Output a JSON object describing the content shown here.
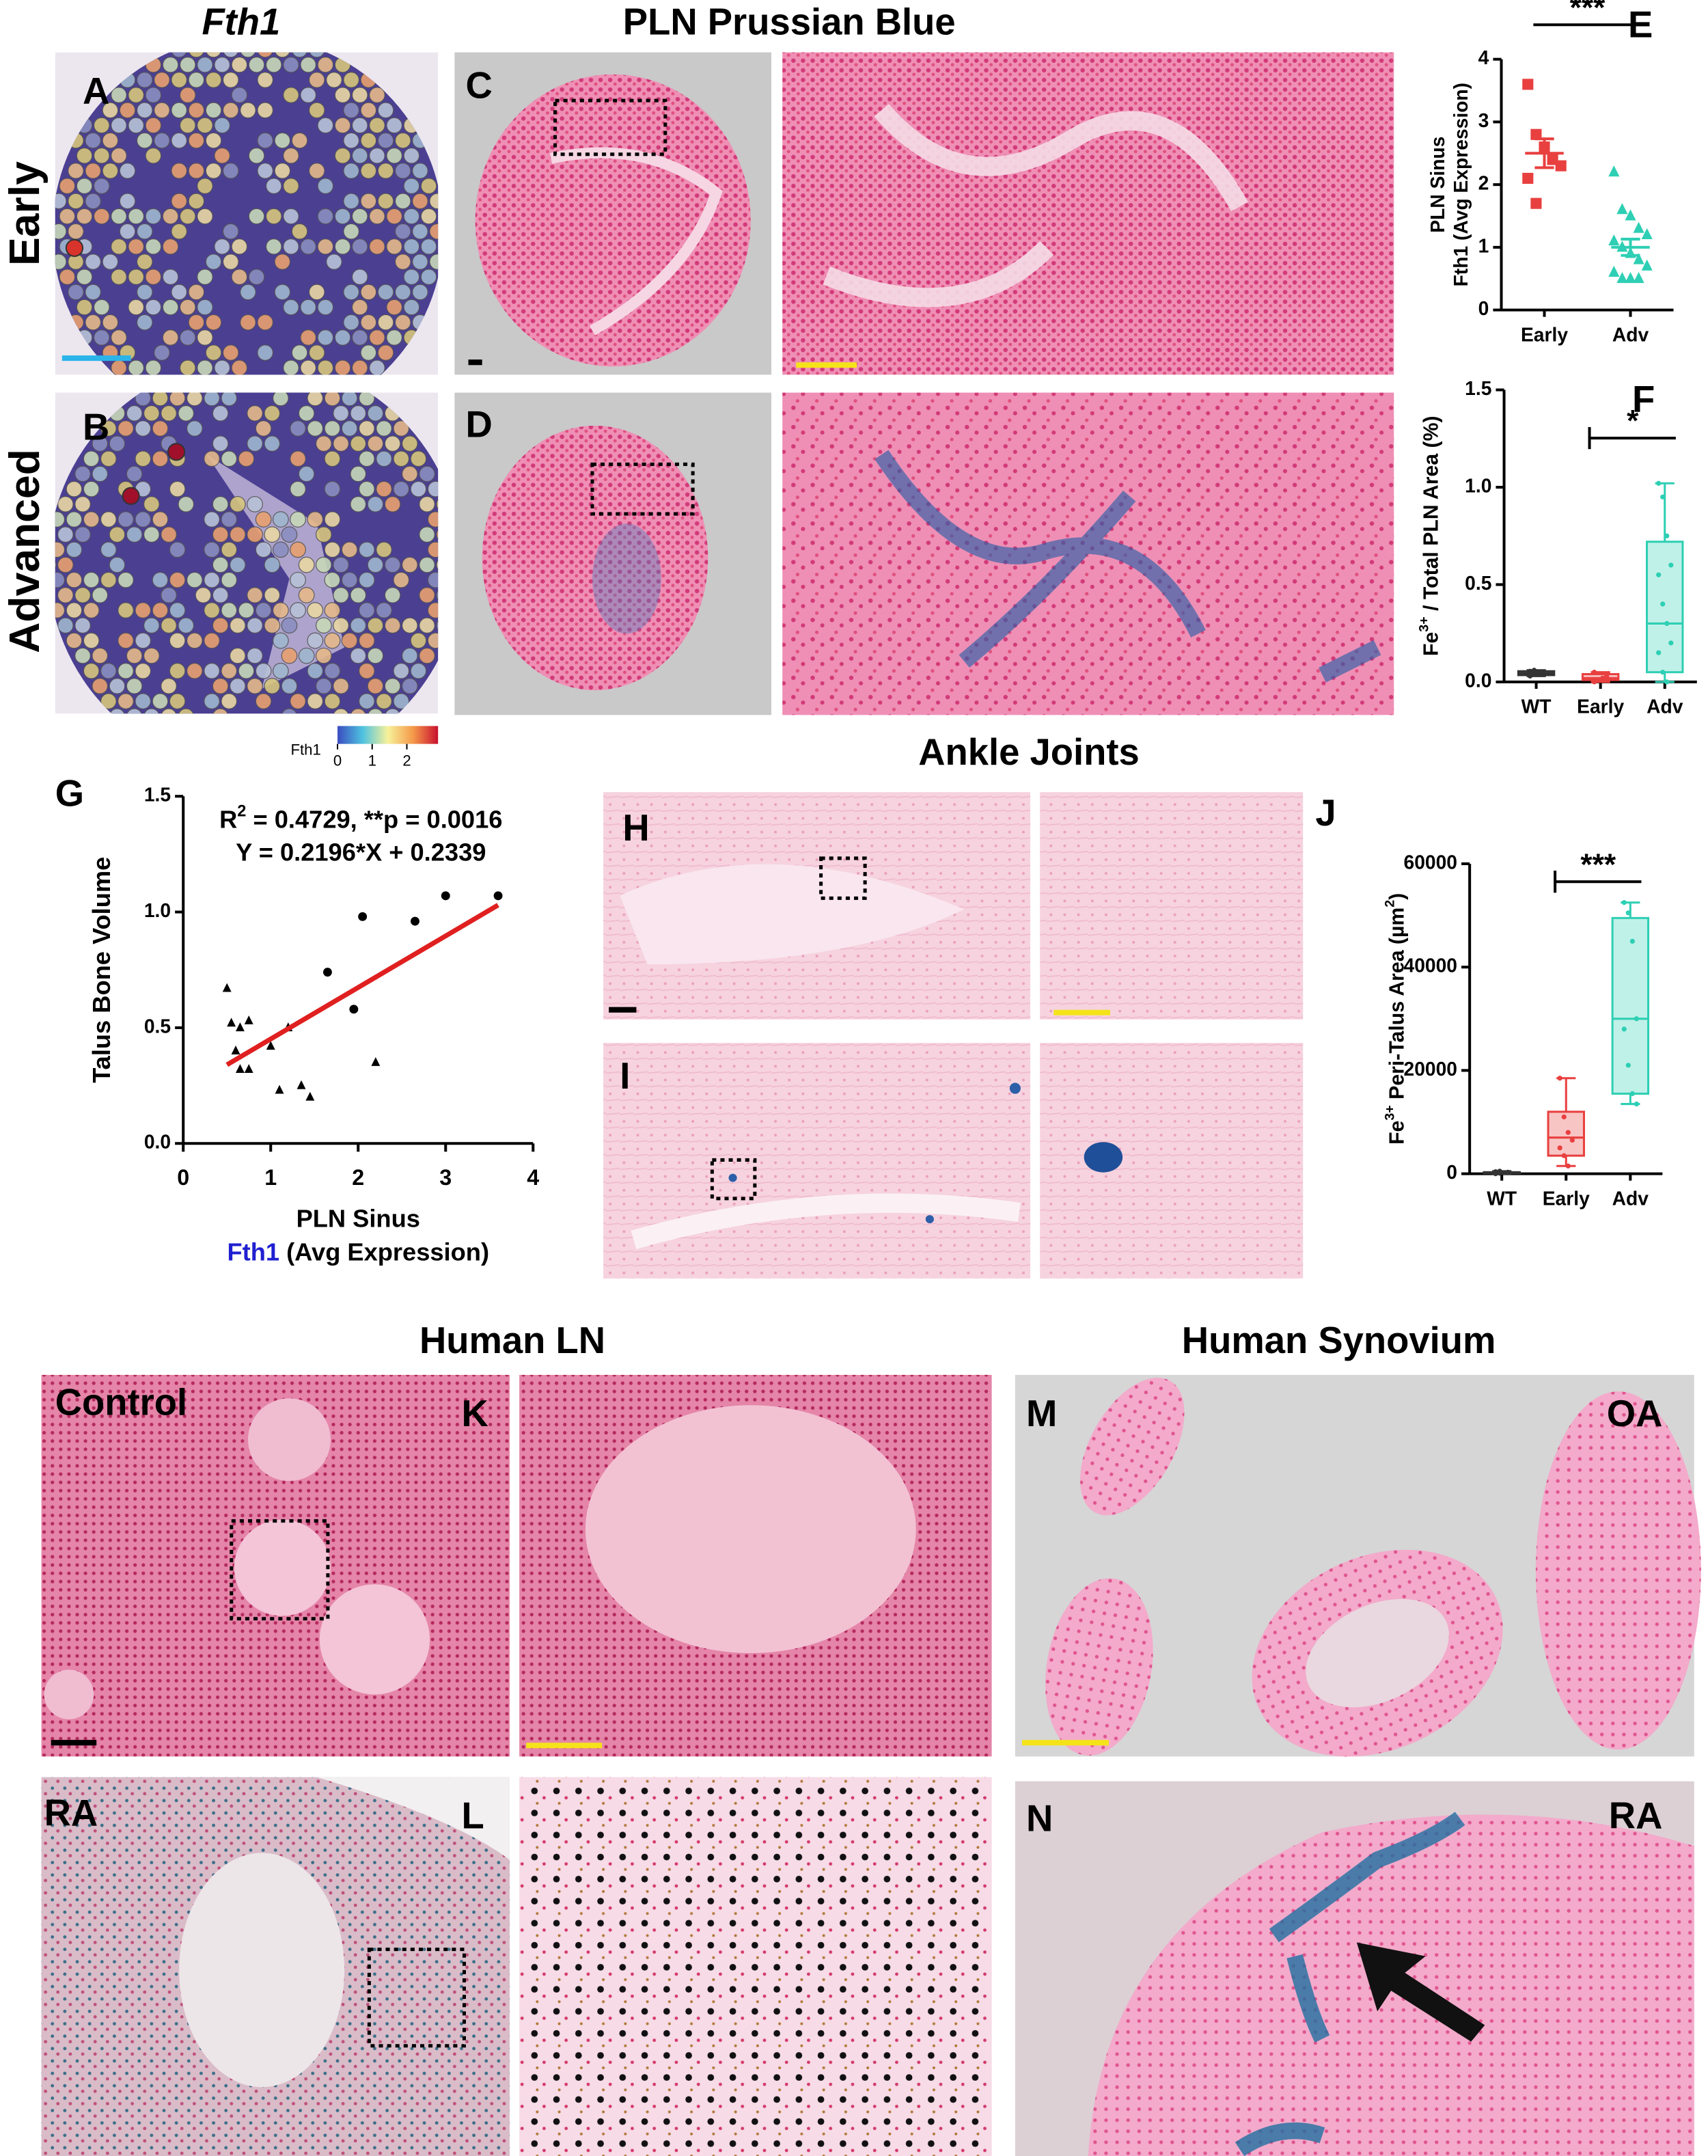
{
  "header": {
    "fth1": "Fth1",
    "pln": "PLN Prussian Blue",
    "ankle": "Ankle Joints",
    "human_ln": "Human LN",
    "human_synovium": "Human Synovium"
  },
  "rows": {
    "early": "Early",
    "advanced": "Advanced"
  },
  "panels": {
    "A": "A",
    "B": "B",
    "C": "C",
    "D": "D",
    "E": "E",
    "F": "F",
    "G": "G",
    "H": "H",
    "I": "I",
    "J": "J",
    "K": "K",
    "L": "L",
    "M": "M",
    "N": "N"
  },
  "image_labels": {
    "control": "Control",
    "ra_ln": "RA",
    "oa": "OA",
    "ra_synovium": "RA"
  },
  "colorbar": {
    "label": "Fth1",
    "lim": [
      0,
      2.9
    ],
    "ticks": [
      0,
      1,
      2
    ],
    "colors": [
      "#3b4cc0",
      "#4fc3e0",
      "#f7f19a",
      "#f59a4a",
      "#c8102e"
    ]
  },
  "chart_data": [
    {
      "type": "strip",
      "ylabel": [
        "PLN Sinus",
        "Fth1 (Avg Expression)"
      ],
      "categories": [
        "Early",
        "Adv"
      ],
      "groups": [
        {
          "color": "#e8403f",
          "marker": "square",
          "values": [
            3.6,
            2.8,
            2.6,
            2.4,
            2.3,
            2.1,
            1.7
          ],
          "mean": 2.5,
          "error": 0.23
        },
        {
          "color": "#2ecfb4",
          "marker": "triangle",
          "values": [
            2.2,
            1.6,
            1.5,
            1.3,
            1.2,
            1.1,
            1.0,
            0.9,
            0.8,
            0.7,
            0.6,
            0.5,
            0.5,
            0.5
          ],
          "mean": 1.0,
          "error": 0.13
        }
      ],
      "ylim": [
        0,
        4
      ],
      "yticks": [
        0,
        1,
        2,
        3,
        4
      ],
      "significance": "***"
    },
    {
      "type": "box",
      "ylabel": {
        "base": "Fe",
        "sup": "3+",
        "rest": " / Total PLN Area (%)"
      },
      "categories": [
        "WT",
        "Early",
        "Adv"
      ],
      "colors": [
        "#333333",
        "#e8403f",
        "#2ecfb4"
      ],
      "boxes": [
        {
          "min": 0.03,
          "q1": 0.035,
          "median": 0.045,
          "q3": 0.055,
          "max": 0.06,
          "points": [
            0.03,
            0.04,
            0.045,
            0.05,
            0.055,
            0.06
          ]
        },
        {
          "min": 0,
          "q1": 0.01,
          "median": 0.02,
          "q3": 0.04,
          "max": 0.05,
          "points": [
            0,
            0.01,
            0.02,
            0.03,
            0.05
          ]
        },
        {
          "min": 0,
          "q1": 0.05,
          "median": 0.3,
          "q3": 0.72,
          "max": 1.02,
          "points": [
            1.02,
            0.95,
            0.75,
            0.6,
            0.55,
            0.4,
            0.3,
            0.2,
            0.15,
            0.05,
            0
          ]
        }
      ],
      "ylim": [
        0,
        1.5
      ],
      "yticks": [
        {
          "value": 0,
          "label": "0.0"
        },
        {
          "value": 0.5,
          "label": "0.5"
        },
        {
          "value": 1,
          "label": "1.0"
        },
        {
          "value": 1.5,
          "label": "1.5"
        }
      ],
      "significance": "*"
    },
    {
      "type": "scatter",
      "ylabel": "Talus Bone Volume",
      "xlabel": "PLN Sinus",
      "xlabel2": {
        "gene": "Fth1",
        "rest": " (Avg Expression)",
        "gene_color": "#1f1fd0"
      },
      "annotation": {
        "base": "R",
        "sup": "2",
        "rest": " = 0.4729, **p = 0.0016"
      },
      "equation": "Y = 0.2196*X + 0.2339",
      "series": [
        {
          "marker": "triangle",
          "color": "#000000",
          "x": [
            0.5,
            0.55,
            0.65,
            0.75,
            0.6,
            0.65,
            0.75,
            1.0,
            1.1,
            1.2,
            1.35,
            1.45,
            2.2
          ],
          "values": [
            0.67,
            0.52,
            0.5,
            0.53,
            0.4,
            0.32,
            0.32,
            0.42,
            0.23,
            0.5,
            0.25,
            0.2,
            0.35
          ]
        },
        {
          "marker": "circle",
          "color": "#000000",
          "x": [
            1.65,
            1.95,
            2.05,
            2.65,
            3.0,
            3.6
          ],
          "values": [
            0.74,
            0.58,
            0.98,
            0.96,
            1.07,
            1.07
          ]
        }
      ],
      "fit": {
        "color": "#e02020",
        "x": [
          0.5,
          3.6
        ],
        "values": [
          0.34,
          1.03
        ]
      },
      "xlim": [
        0,
        4
      ],
      "xticks": [
        0,
        1,
        2,
        3,
        4
      ],
      "ylim": [
        0,
        1.5
      ],
      "yticks": [
        {
          "value": 0,
          "label": "0.0"
        },
        {
          "value": 0.5,
          "label": "0.5"
        },
        {
          "value": 1,
          "label": "1.0"
        },
        {
          "value": 1.5,
          "label": "1.5"
        }
      ]
    },
    {
      "type": "box",
      "ylabel": {
        "base": "Fe",
        "sup": "3+",
        "rest": " Peri-Talus Area (µm",
        "sup2": "2",
        "end": ")"
      },
      "categories": [
        "WT",
        "Early",
        "Adv"
      ],
      "colors": [
        "#333333",
        "#e8403f",
        "#2ecfb4"
      ],
      "boxes": [
        {
          "min": 0,
          "q1": 100,
          "median": 200,
          "q3": 300,
          "max": 500,
          "points": [
            0,
            100,
            200,
            300,
            400,
            500
          ]
        },
        {
          "min": 1500,
          "q1": 3500,
          "median": 7000,
          "q3": 12000,
          "max": 18500,
          "points": [
            18500,
            11000,
            8000,
            6500,
            5000,
            3500,
            1500
          ]
        },
        {
          "min": 13500,
          "q1": 15500,
          "median": 30000,
          "q3": 49500,
          "max": 52500,
          "points": [
            52500,
            50500,
            45000,
            30000,
            28000,
            21000,
            15500,
            13500
          ]
        }
      ],
      "ylim": [
        0,
        60000
      ],
      "yticks": [
        0,
        20000,
        40000,
        60000
      ],
      "significance": "***"
    }
  ]
}
